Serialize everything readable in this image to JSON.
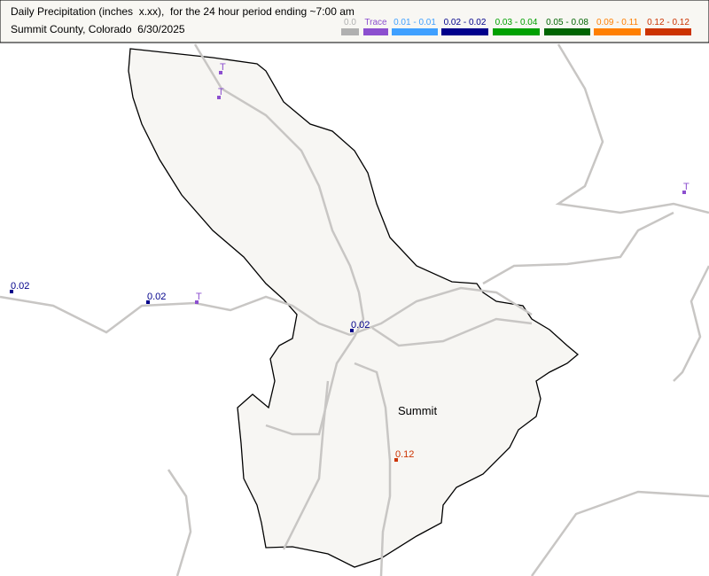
{
  "header": {
    "title": "Daily Precipitation (inches  x.xx),  for the 24 hour period ending ~7:00 am",
    "subtitle": "Summit County, Colorado  6/30/2025"
  },
  "legend": [
    {
      "label": "0.0",
      "color": "#b0b0b0"
    },
    {
      "label": "Trace",
      "color": "#8c4fcf"
    },
    {
      "label": "0.01 - 0.01",
      "color": "#3fa0ff"
    },
    {
      "label": "0.02 - 0.02",
      "color": "#00008b"
    },
    {
      "label": "0.03 - 0.04",
      "color": "#00a000"
    },
    {
      "label": "0.05 - 0.08",
      "color": "#006400"
    },
    {
      "label": "0.09 - 0.11",
      "color": "#ff7f00"
    },
    {
      "label": "0.12 - 0.12",
      "color": "#cc3300"
    }
  ],
  "county": {
    "label": "Summit"
  },
  "stations": [
    {
      "label": "T",
      "color": "#8c4fcf"
    },
    {
      "label": "T",
      "color": "#8c4fcf"
    },
    {
      "label": "T",
      "color": "#8c4fcf"
    },
    {
      "label": "0.02",
      "color": "#00008b"
    },
    {
      "label": "0.02",
      "color": "#00008b"
    },
    {
      "label": "T",
      "color": "#8c4fcf"
    },
    {
      "label": "0.02",
      "color": "#00008b"
    },
    {
      "label": "0.12",
      "color": "#cc3300"
    }
  ]
}
